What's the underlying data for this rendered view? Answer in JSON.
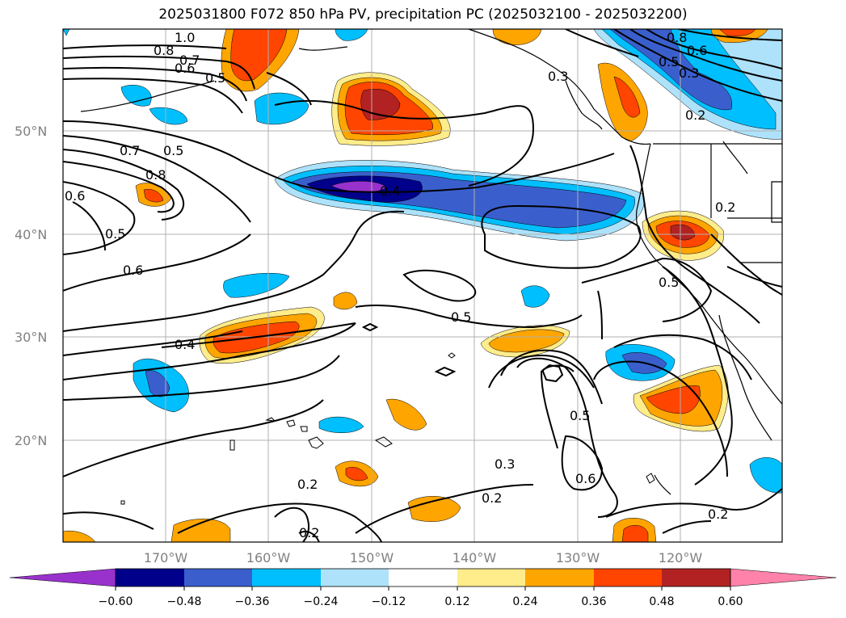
{
  "title": "2025031800 F072 850 hPa PV, precipitation PC (2025032100 - 2025032200)",
  "lat_ticks": [
    "50°N",
    "40°N",
    "30°N",
    "20°N"
  ],
  "lon_ticks": [
    "170°W",
    "160°W",
    "150°W",
    "140°W",
    "130°W",
    "120°W"
  ],
  "contour_labels": [
    "1.0",
    "0.8",
    "0.7",
    "0.6",
    "0.5",
    "0.7",
    "0.5",
    "0.8",
    "0.6",
    "0.5",
    "0.6",
    "0.4",
    "0.4",
    "0.5",
    "0.5",
    "0.3",
    "0.6",
    "0.2",
    "0.2",
    "0.2",
    "0.2",
    "0.3",
    "0.8",
    "0.6",
    "0.5",
    "0.3",
    "0.2",
    "0.2",
    "0.5"
  ],
  "colorbar": {
    "ticks": [
      "−0.60",
      "−0.48",
      "−0.36",
      "−0.24",
      "−0.12",
      "0.12",
      "0.24",
      "0.36",
      "0.48",
      "0.60"
    ],
    "colors": [
      "#9932CC",
      "#00008B",
      "#3A5FCD",
      "#00BFFF",
      "#ADE2FA",
      "#FFFFFF",
      "#FFEC8B",
      "#FFA500",
      "#FF4500",
      "#B22222",
      "#FF82AB"
    ]
  },
  "colors": {
    "negative_max": "#9932CC",
    "positive_max": "#FF82AB"
  }
}
